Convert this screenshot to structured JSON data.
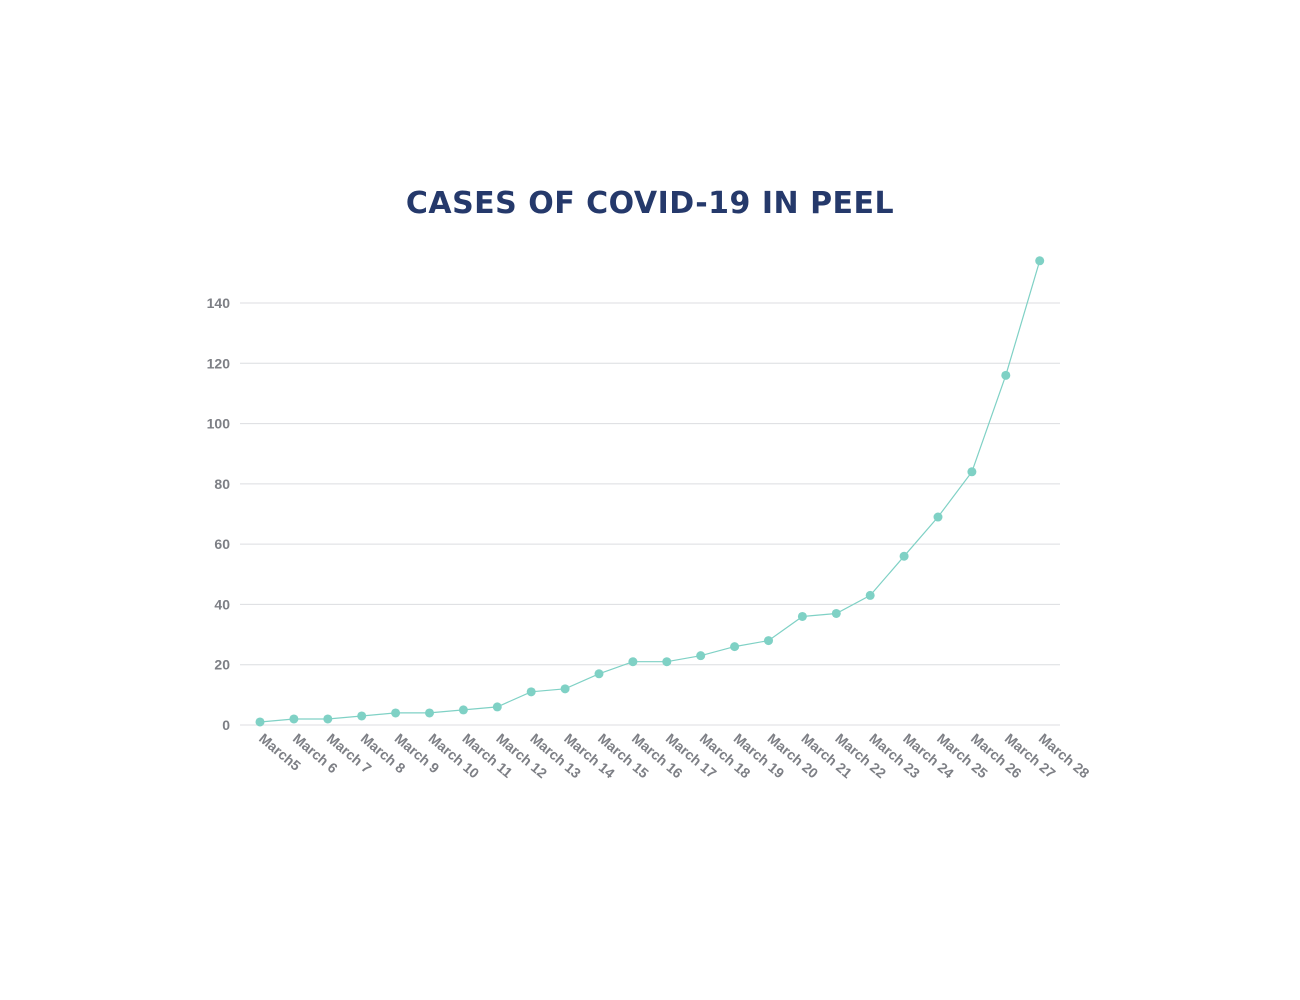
{
  "chart_data": {
    "type": "line",
    "title": "CASES OF COVID-19 IN PEEL",
    "xlabel": "",
    "ylabel": "",
    "categories": [
      "March5",
      "March 6",
      "March 7",
      "March 8",
      "March 9",
      "March 10",
      "March 11",
      "March 12",
      "March 13",
      "March 14",
      "March 15",
      "March 16",
      "March 17",
      "March 18",
      "March 19",
      "March 20",
      "March 21",
      "March 22",
      "March 23",
      "March 24",
      "March 25",
      "March 26",
      "March 27",
      "March 28"
    ],
    "series": [
      {
        "values": [
          1,
          2,
          2,
          3,
          4,
          4,
          5,
          6,
          11,
          12,
          17,
          21,
          21,
          23,
          26,
          28,
          36,
          37,
          43,
          56,
          69,
          84,
          116,
          154
        ]
      }
    ],
    "yticks": [
      0,
      20,
      40,
      60,
      80,
      100,
      120,
      140
    ],
    "ylim": [
      0,
      154
    ],
    "grid": true,
    "legend": "none",
    "colors": {
      "title": "#25396b",
      "line": "#7fd1c5",
      "marker": "#7fd1c5",
      "gridline": "#dcdde0",
      "tick_label": "#7d7f85"
    }
  }
}
